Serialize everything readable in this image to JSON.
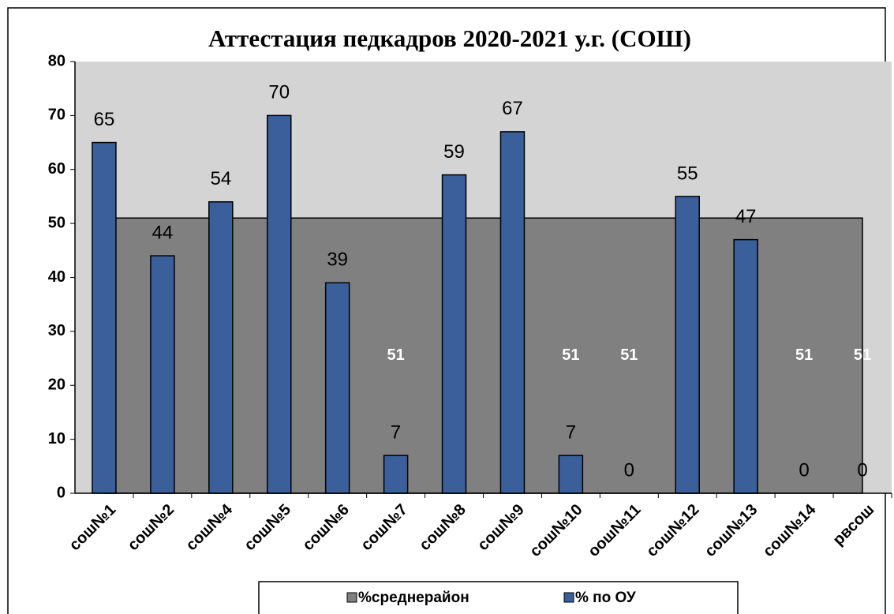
{
  "chart_data": {
    "type": "bar",
    "title": "Аттестация педкадров 2020-2021 у.г. (СОШ)",
    "categories": [
      "сош№1",
      "сош№2",
      "сош№4",
      "сош№5",
      "сош№6",
      "сош№7",
      "сош№8",
      "сош№9",
      "сош№10",
      "оош№11",
      "сош№12",
      "сош№13",
      "сош№14",
      "рвсош"
    ],
    "series": [
      {
        "name": "%среднерайон",
        "type": "area",
        "color": "#808080",
        "values": [
          51,
          51,
          51,
          51,
          51,
          51,
          51,
          51,
          51,
          51,
          51,
          51,
          51,
          51
        ]
      },
      {
        "name": "% по ОУ",
        "type": "bar",
        "color": "#3a5f9a",
        "values": [
          65,
          44,
          54,
          70,
          39,
          7,
          59,
          67,
          7,
          0,
          55,
          47,
          0,
          0
        ]
      }
    ],
    "ylim": [
      0,
      80
    ],
    "yticks": [
      0,
      10,
      20,
      30,
      40,
      50,
      60,
      70,
      80
    ],
    "legend": "bottom"
  }
}
